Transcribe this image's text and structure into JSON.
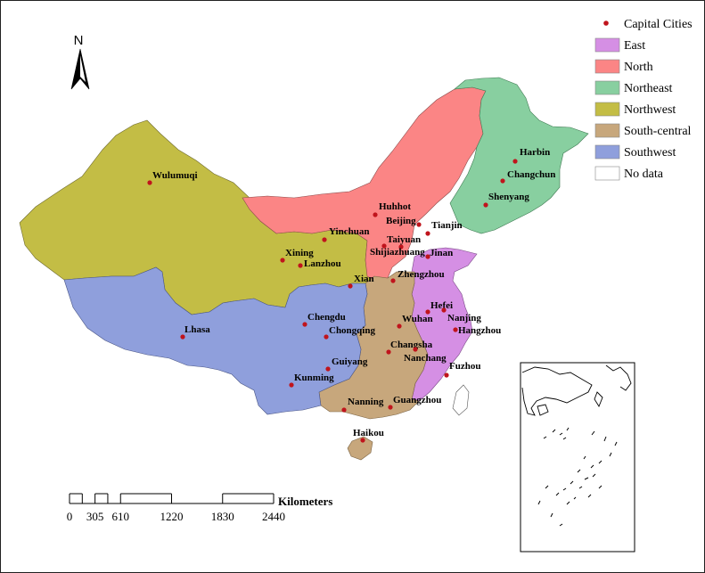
{
  "north_arrow": {
    "label": "N"
  },
  "colors": {
    "capital_dot": "#c0141c",
    "East": "#d58fe4",
    "North": "#fb8585",
    "Northeast": "#88cfa0",
    "Northwest": "#c3bd45",
    "South-central": "#c7a77c",
    "Southwest": "#8f9fdc",
    "No data": "#ffffff"
  },
  "legend": {
    "items": [
      {
        "label": "Capital Cities",
        "kind": "dot",
        "color": "#c0141c"
      },
      {
        "label": "East",
        "kind": "box",
        "color": "#d58fe4"
      },
      {
        "label": "North",
        "kind": "box",
        "color": "#fb8585"
      },
      {
        "label": "Northeast",
        "kind": "box",
        "color": "#88cfa0"
      },
      {
        "label": "Northwest",
        "kind": "box",
        "color": "#c3bd45"
      },
      {
        "label": "South-central",
        "kind": "box",
        "color": "#c7a77c"
      },
      {
        "label": "Southwest",
        "kind": "box",
        "color": "#8f9fdc"
      },
      {
        "label": "No data",
        "kind": "box",
        "color": "#ffffff"
      }
    ]
  },
  "cities": [
    "Harbin",
    "Changchun",
    "Shenyang",
    "Wulumuqi",
    "Huhhot",
    "Beijing",
    "Tianjin",
    "Yinchuan",
    "Taiyuan",
    "Shijiazhuang",
    "Jinan",
    "Xining",
    "Lanzhou",
    "Zhengzhou",
    "Xian",
    "Hefei",
    "Nanjing",
    "Chengdu",
    "Wuhan",
    "Hangzhou",
    "Lhasa",
    "Chongqing",
    "Changsha",
    "Nanchang",
    "Guiyang",
    "Fuzhou",
    "Kunming",
    "Nanning",
    "Guangzhou",
    "Haikou"
  ],
  "scale_bar": {
    "title": "Kilometers",
    "ticks": [
      "0",
      "305",
      "610",
      "1220",
      "1830",
      "2440"
    ],
    "tick_values": [
      0,
      305,
      610,
      1220,
      1830,
      2440
    ]
  }
}
